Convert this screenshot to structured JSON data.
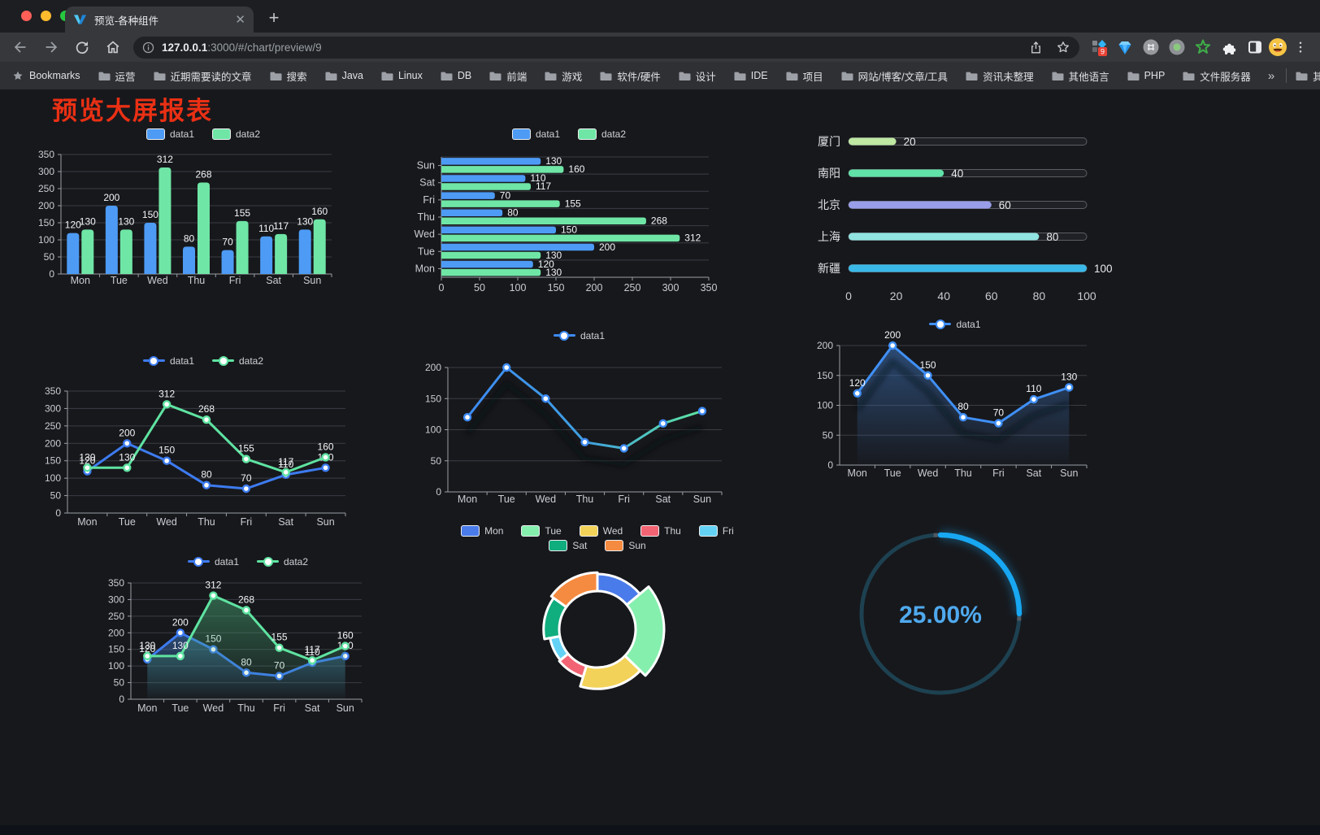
{
  "browser": {
    "tab_title": "预览-各种组件",
    "url_host": "127.0.0.1",
    "url_rest": ":3000/#/chart/preview/9",
    "bookmarks_label": "Bookmarks",
    "bookmarks": [
      "运营",
      "近期需要读的文章",
      "搜索",
      "Java",
      "Linux",
      "DB",
      "前端",
      "游戏",
      "软件/硬件",
      "设计",
      "IDE",
      "项目",
      "网站/博客/文章/工具",
      "资讯未整理",
      "其他语言",
      "PHP",
      "文件服务器"
    ],
    "overflow_chevron": "»",
    "other_bookmarks": "其他书签",
    "extensions": [
      {
        "icon": "blocks-badge-icon",
        "badge": "9"
      },
      {
        "icon": "blue-gem-icon"
      },
      {
        "icon": "hash-circle-icon"
      },
      {
        "icon": "green-dot-circle-icon"
      },
      {
        "icon": "green-star-icon"
      },
      {
        "icon": "puzzle-icon"
      },
      {
        "icon": "split-square-icon"
      }
    ]
  },
  "page": {
    "title": "预览大屏报表"
  },
  "chart_data": [
    {
      "id": "grouped-bar",
      "type": "bar",
      "categories": [
        "Mon",
        "Tue",
        "Wed",
        "Thu",
        "Fri",
        "Sat",
        "Sun"
      ],
      "series": [
        {
          "name": "data1",
          "color": "#4d9bf5",
          "values": [
            120,
            200,
            150,
            80,
            70,
            110,
            130
          ]
        },
        {
          "name": "data2",
          "color": "#6fe6a6",
          "values": [
            130,
            130,
            312,
            268,
            155,
            117,
            160
          ]
        }
      ],
      "ylim": [
        0,
        350
      ],
      "ytick": 50,
      "legend_position": "top",
      "grid": true
    },
    {
      "id": "grouped-hbar",
      "type": "bar-horizontal",
      "categories": [
        "Mon",
        "Tue",
        "Wed",
        "Thu",
        "Fri",
        "Sat",
        "Sun"
      ],
      "series": [
        {
          "name": "data1",
          "color": "#4d9bf5",
          "values": [
            120,
            200,
            150,
            80,
            70,
            110,
            130
          ]
        },
        {
          "name": "data2",
          "color": "#6fe6a6",
          "values": [
            130,
            130,
            312,
            268,
            155,
            117,
            160
          ]
        }
      ],
      "xlim": [
        0,
        350
      ],
      "xtick": 50,
      "legend_position": "top"
    },
    {
      "id": "city-progress",
      "type": "progress",
      "items": [
        {
          "label": "厦门",
          "value": 20,
          "color": "#bfe8a3"
        },
        {
          "label": "南阳",
          "value": 40,
          "color": "#60e2a8"
        },
        {
          "label": "北京",
          "value": 60,
          "color": "#989ee8"
        },
        {
          "label": "上海",
          "value": 80,
          "color": "#90e3e1"
        },
        {
          "label": "新疆",
          "value": 100,
          "color": "#3ab9e8"
        }
      ],
      "xlim": [
        0,
        100
      ],
      "ticks": [
        0,
        20,
        40,
        60,
        80,
        100
      ]
    },
    {
      "id": "two-line",
      "type": "line",
      "categories": [
        "Mon",
        "Tue",
        "Wed",
        "Thu",
        "Fri",
        "Sat",
        "Sun"
      ],
      "series": [
        {
          "name": "data1",
          "color": "#3d7bf0",
          "values": [
            120,
            200,
            150,
            80,
            70,
            110,
            130
          ],
          "labels": true
        },
        {
          "name": "data2",
          "color": "#5fe3a1",
          "values": [
            130,
            130,
            312,
            268,
            155,
            117,
            160
          ],
          "labels": true
        }
      ],
      "ylim": [
        0,
        350
      ],
      "ytick": 50,
      "legend_position": "top"
    },
    {
      "id": "gradient-line",
      "type": "line",
      "categories": [
        "Mon",
        "Tue",
        "Wed",
        "Thu",
        "Fri",
        "Sat",
        "Sun"
      ],
      "series": [
        {
          "name": "data1",
          "color": "#3d8bf5",
          "gradient": [
            "#3d8bf5",
            "#3fa0e0",
            "#5ee6a0"
          ],
          "values": [
            120,
            200,
            150,
            80,
            70,
            110,
            130
          ],
          "labels": false,
          "shadow": true
        }
      ],
      "ylim": [
        0,
        200
      ],
      "ytick": 50,
      "legend_position": "top"
    },
    {
      "id": "area-line",
      "type": "line",
      "categories": [
        "Mon",
        "Tue",
        "Wed",
        "Thu",
        "Fri",
        "Sat",
        "Sun"
      ],
      "series": [
        {
          "name": "data1",
          "color": "#4090f7",
          "values": [
            120,
            200,
            150,
            80,
            70,
            110,
            130
          ],
          "labels": true,
          "area": "blue",
          "shadow": true
        }
      ],
      "ylim": [
        0,
        200
      ],
      "ytick": 50,
      "legend_position": "top"
    },
    {
      "id": "two-area-line",
      "type": "line",
      "categories": [
        "Mon",
        "Tue",
        "Wed",
        "Thu",
        "Fri",
        "Sat",
        "Sun"
      ],
      "series": [
        {
          "name": "data1",
          "color": "#3d7bf0",
          "values": [
            120,
            200,
            150,
            80,
            70,
            110,
            130
          ],
          "labels": true,
          "area": "blue"
        },
        {
          "name": "data2",
          "color": "#5fe3a1",
          "values": [
            130,
            130,
            312,
            268,
            155,
            117,
            160
          ],
          "labels": true,
          "area": "green"
        }
      ],
      "ylim": [
        0,
        350
      ],
      "ytick": 50,
      "legend_position": "top"
    },
    {
      "id": "rose-pie",
      "type": "pie",
      "rose": true,
      "categories": [
        "Mon",
        "Tue",
        "Wed",
        "Thu",
        "Fri",
        "Sat",
        "Sun"
      ],
      "values": [
        120,
        200,
        150,
        80,
        70,
        110,
        130
      ],
      "colors": [
        "#4a7bea",
        "#85efad",
        "#f2d258",
        "#f26473",
        "#64d2f5",
        "#10ad7e",
        "#f58b40"
      ],
      "legend_position": "top"
    },
    {
      "id": "gauge",
      "type": "gauge",
      "value": 25,
      "label": "25.00%",
      "color": "#18a7f2",
      "track_color": "#1d4150",
      "text_color": "#4fa9ee"
    }
  ]
}
